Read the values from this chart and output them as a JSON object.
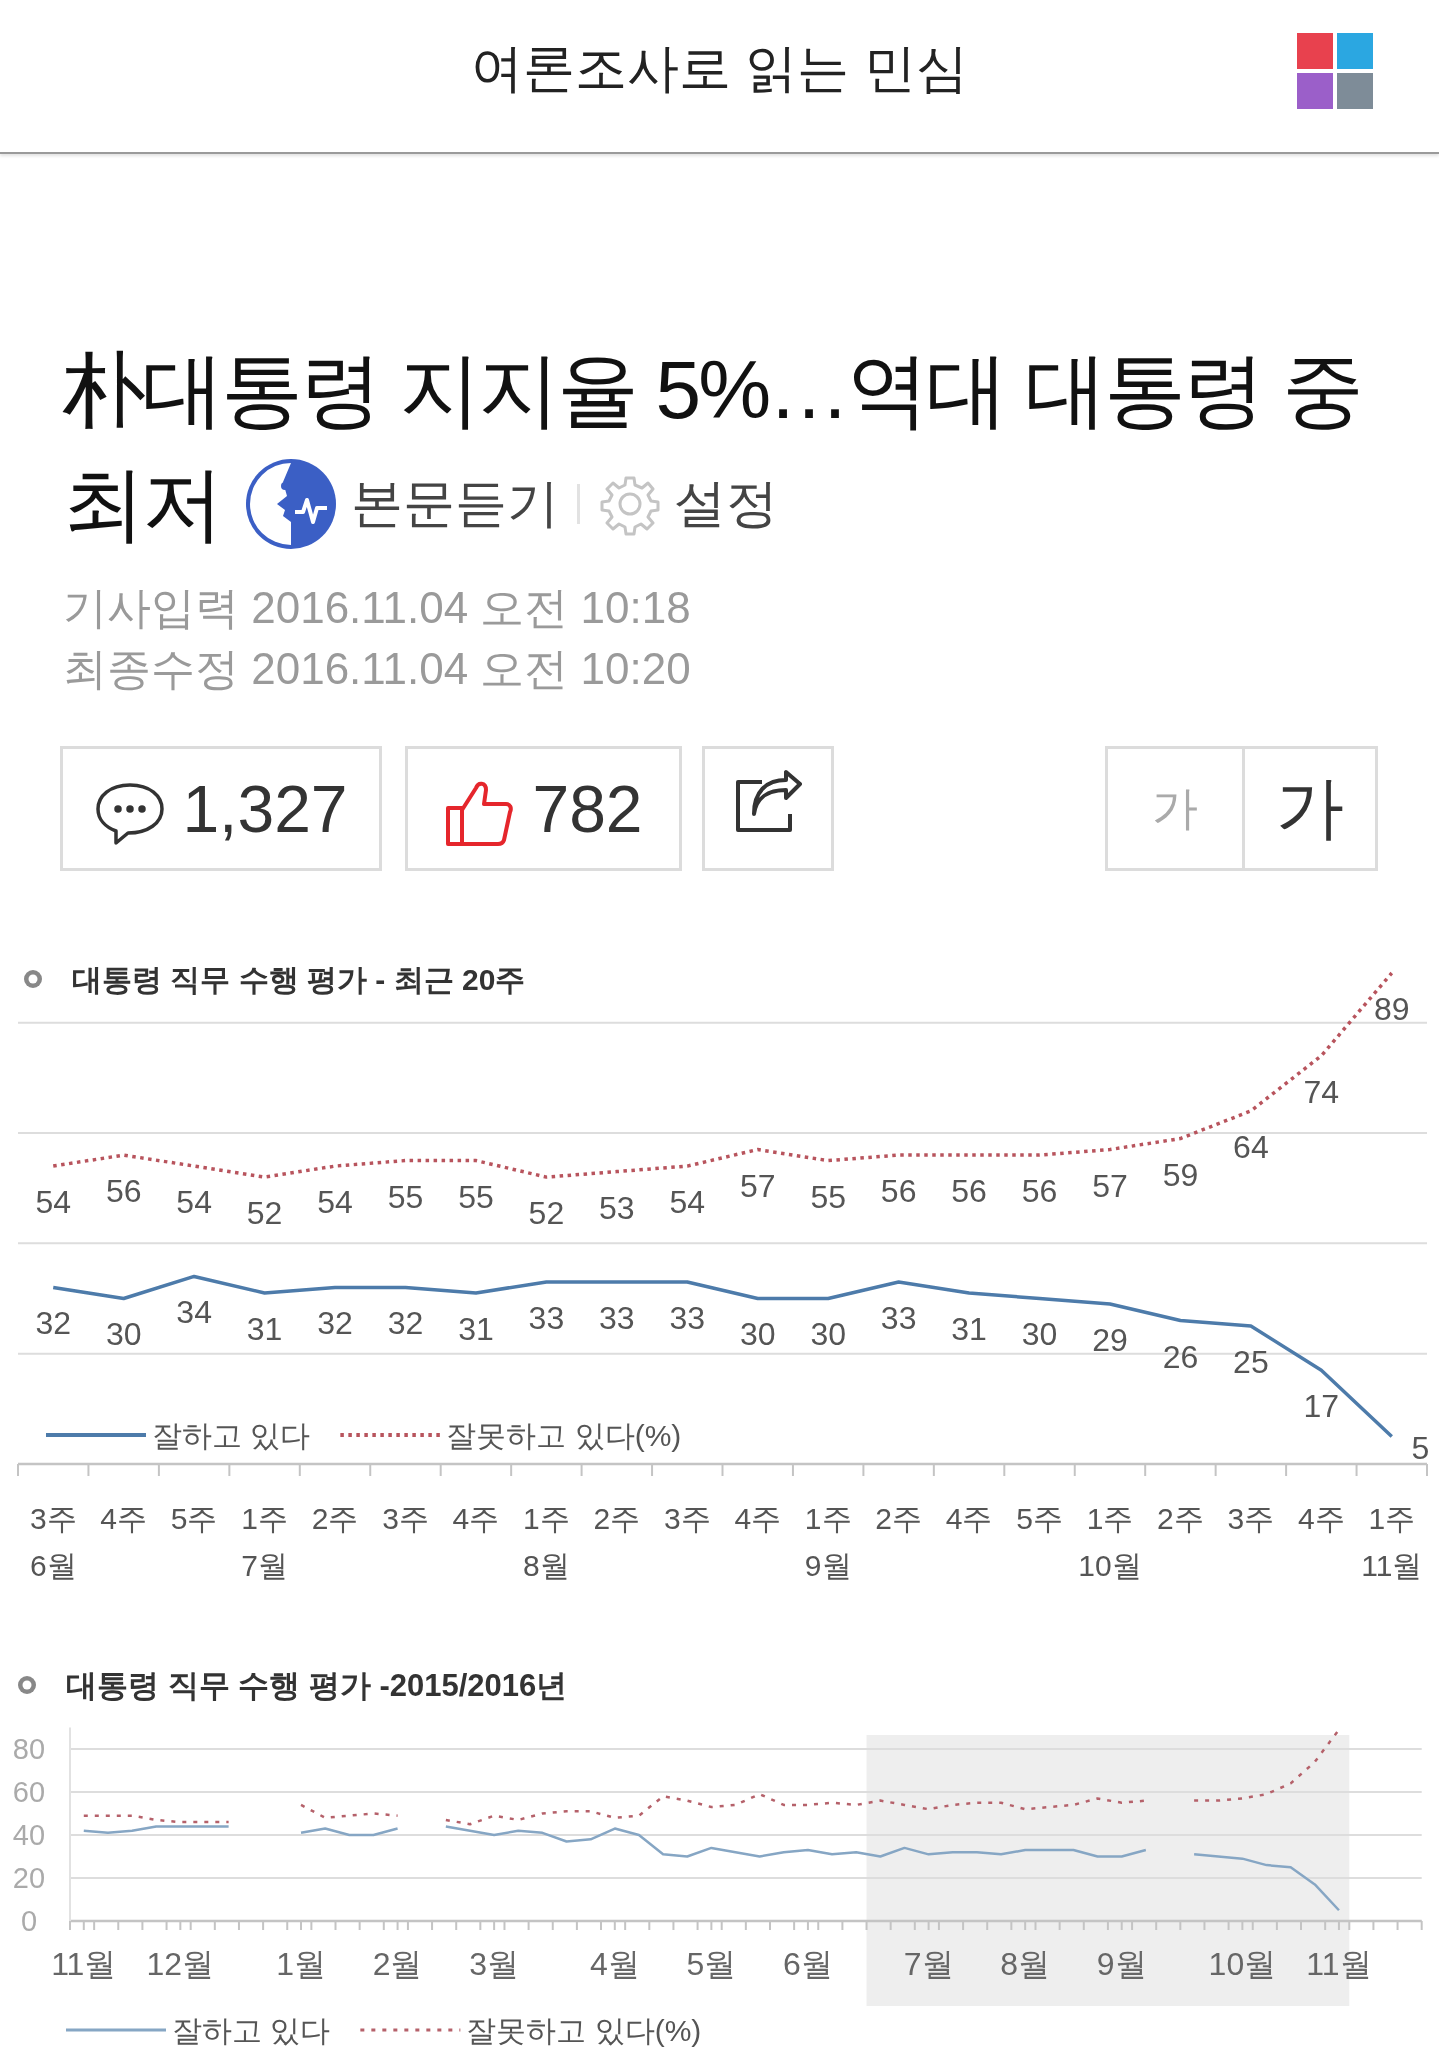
{
  "chart_data": [
    {
      "type": "other",
      "title": "여론조사로 읽는 민심",
      "annotations": [
        "朴대통령 지지율 5%…역대 대통령 중",
        "최저",
        "본문듣기",
        "설정",
        "기사입력 2016.11.04 오전 10:18",
        "최종수정 2016.11.04 오전 10:20",
        "1,327",
        "782",
        "가",
        "가"
      ]
    },
    {
      "type": "line",
      "title": "대통령 직무 수행 평가 - 최근 20주",
      "categories": [
        "3주\n6월",
        "4주",
        "5주",
        "1주\n7월",
        "2주",
        "3주",
        "4주",
        "1주\n8월",
        "2주",
        "3주",
        "4주",
        "1주\n9월",
        "2주",
        "4주",
        "5주",
        "1주\n10월",
        "2주",
        "3주",
        "4주",
        "1주\n11월"
      ],
      "series": [
        {
          "name": "잘하고 있다",
          "color": "#4d7baa",
          "line_style": "solid",
          "values": [
            32,
            30,
            34,
            31,
            32,
            32,
            31,
            33,
            33,
            33,
            30,
            30,
            33,
            31,
            30,
            29,
            26,
            25,
            17,
            5
          ]
        },
        {
          "name": "잘못하고 있다(%)",
          "color": "#b8545d",
          "line_style": "dotted",
          "values": [
            54,
            56,
            54,
            52,
            54,
            55,
            55,
            52,
            53,
            54,
            57,
            55,
            56,
            56,
            56,
            57,
            59,
            64,
            74,
            89
          ]
        }
      ],
      "data_labels": true,
      "yticks": [
        {
          "value": 0,
          "label": null
        },
        {
          "value": 20,
          "label": null
        },
        {
          "value": 40,
          "label": null
        },
        {
          "value": 60,
          "label": null
        },
        {
          "value": 80,
          "label": null
        }
      ],
      "grid": "y",
      "legend": "bottom left",
      "tick_labels": "x"
    },
    {
      "type": "line",
      "title": "대통령 직무 수행 평가 -2015/2016년",
      "x": [
        "2015-11-06",
        "2015-11-13",
        "2015-11-20",
        "2015-11-27",
        "2015-12-04",
        "2015-12-11",
        "2015-12-18",
        "2016-01-08",
        "2016-01-15",
        "2016-01-22",
        "2016-01-29",
        "2016-02-05",
        "2016-02-19",
        "2016-02-26",
        "2016-03-04",
        "2016-03-11",
        "2016-03-18",
        "2016-03-25",
        "2016-04-01",
        "2016-04-08",
        "2016-04-15",
        "2016-04-22",
        "2016-04-29",
        "2016-05-06",
        "2016-05-13",
        "2016-05-20",
        "2016-05-27",
        "2016-06-03",
        "2016-06-10",
        "2016-06-17",
        "2016-06-24",
        "2016-07-01",
        "2016-07-08",
        "2016-07-15",
        "2016-07-22",
        "2016-07-29",
        "2016-08-05",
        "2016-08-12",
        "2016-08-19",
        "2016-08-26",
        "2016-09-02",
        "2016-09-09",
        "2016-09-23",
        "2016-09-30",
        "2016-10-07",
        "2016-10-14",
        "2016-10-21",
        "2016-10-28",
        "2016-11-04"
      ],
      "xlim": [
        "2015-11-02",
        "2016-11-28"
      ],
      "xticks": [
        {
          "value": "2015-11-06",
          "label": "11월"
        },
        {
          "value": "2015-12-04",
          "label": "12월"
        },
        {
          "value": "2016-01-08",
          "label": "1월"
        },
        {
          "value": "2016-02-05",
          "label": "2월"
        },
        {
          "value": "2016-03-04",
          "label": "3월"
        },
        {
          "value": "2016-04-08",
          "label": "4월"
        },
        {
          "value": "2016-05-06",
          "label": "5월"
        },
        {
          "value": "2016-06-03",
          "label": "6월"
        },
        {
          "value": "2016-07-08",
          "label": "7월"
        },
        {
          "value": "2016-08-05",
          "label": "8월"
        },
        {
          "value": "2016-09-02",
          "label": "9월"
        },
        {
          "value": "2016-10-07",
          "label": "10월"
        },
        {
          "value": "2016-11-04",
          "label": "11월"
        },
        {
          "value": "2015-11-02",
          "label": null
        },
        {
          "value": "2015-11-09",
          "label": null
        },
        {
          "value": "2015-11-16",
          "label": null
        },
        {
          "value": "2015-11-23",
          "label": null
        },
        {
          "value": "2015-11-30",
          "label": null
        },
        {
          "value": "2015-12-07",
          "label": null
        },
        {
          "value": "2015-12-14",
          "label": null
        },
        {
          "value": "2015-12-21",
          "label": null
        },
        {
          "value": "2015-12-28",
          "label": null
        },
        {
          "value": "2016-01-04",
          "label": null
        },
        {
          "value": "2016-01-11",
          "label": null
        },
        {
          "value": "2016-01-18",
          "label": null
        },
        {
          "value": "2016-01-25",
          "label": null
        },
        {
          "value": "2016-02-01",
          "label": null
        },
        {
          "value": "2016-02-08",
          "label": null
        },
        {
          "value": "2016-02-15",
          "label": null
        },
        {
          "value": "2016-02-22",
          "label": null
        },
        {
          "value": "2016-02-29",
          "label": null
        },
        {
          "value": "2016-03-07",
          "label": null
        },
        {
          "value": "2016-03-14",
          "label": null
        },
        {
          "value": "2016-03-21",
          "label": null
        },
        {
          "value": "2016-03-28",
          "label": null
        },
        {
          "value": "2016-04-04",
          "label": null
        },
        {
          "value": "2016-04-11",
          "label": null
        },
        {
          "value": "2016-04-18",
          "label": null
        },
        {
          "value": "2016-04-25",
          "label": null
        },
        {
          "value": "2016-05-02",
          "label": null
        },
        {
          "value": "2016-05-09",
          "label": null
        },
        {
          "value": "2016-05-16",
          "label": null
        },
        {
          "value": "2016-05-23",
          "label": null
        },
        {
          "value": "2016-05-30",
          "label": null
        },
        {
          "value": "2016-06-06",
          "label": null
        },
        {
          "value": "2016-06-13",
          "label": null
        },
        {
          "value": "2016-06-20",
          "label": null
        },
        {
          "value": "2016-06-27",
          "label": null
        },
        {
          "value": "2016-07-04",
          "label": null
        },
        {
          "value": "2016-07-11",
          "label": null
        },
        {
          "value": "2016-07-18",
          "label": null
        },
        {
          "value": "2016-07-25",
          "label": null
        },
        {
          "value": "2016-08-01",
          "label": null
        },
        {
          "value": "2016-08-08",
          "label": null
        },
        {
          "value": "2016-08-15",
          "label": null
        },
        {
          "value": "2016-08-22",
          "label": null
        },
        {
          "value": "2016-08-29",
          "label": null
        },
        {
          "value": "2016-09-05",
          "label": null
        },
        {
          "value": "2016-09-12",
          "label": null
        },
        {
          "value": "2016-09-19",
          "label": null
        },
        {
          "value": "2016-09-26",
          "label": null
        },
        {
          "value": "2016-10-03",
          "label": null
        },
        {
          "value": "2016-10-10",
          "label": null
        },
        {
          "value": "2016-10-17",
          "label": null
        },
        {
          "value": "2016-10-24",
          "label": null
        },
        {
          "value": "2016-10-31",
          "label": null
        },
        {
          "value": "2016-11-07",
          "label": null
        },
        {
          "value": "2016-11-14",
          "label": null
        },
        {
          "value": "2016-11-21",
          "label": null
        },
        {
          "value": "2016-11-28",
          "label": null
        }
      ],
      "ylim": [
        0,
        90
      ],
      "yticks": [
        0,
        20,
        40,
        60,
        80
      ],
      "grid": "y",
      "legend": "bottom",
      "bands": [
        {
          "axis": "x",
          "from": "2016-06-20",
          "to": "2016-11-07",
          "color": "#eeeeee"
        }
      ],
      "series": [
        {
          "name": "잘하고 있다",
          "color": "#86a6c4",
          "line_style": "solid",
          "values": [
            42,
            41,
            42,
            44,
            44,
            44,
            44,
            41,
            43,
            40,
            40,
            43,
            44,
            42,
            40,
            42,
            41,
            37,
            38,
            43,
            40,
            31,
            30,
            34,
            32,
            30,
            32,
            33,
            31,
            32,
            30,
            34,
            31,
            32,
            32,
            31,
            33,
            33,
            33,
            30,
            30,
            33,
            31,
            30,
            29,
            26,
            25,
            17,
            5
          ]
        },
        {
          "name": "잘못하고 있다(%)",
          "color": "#b5616a",
          "line_style": "dotted",
          "values": [
            49,
            49,
            49,
            47,
            46,
            46,
            46,
            54,
            48,
            49,
            50,
            49,
            47,
            45,
            49,
            47,
            50,
            51,
            51,
            48,
            49,
            58,
            56,
            53,
            54,
            59,
            54,
            54,
            55,
            54,
            56,
            54,
            52,
            54,
            55,
            55,
            52,
            53,
            54,
            57,
            55,
            56,
            56,
            56,
            57,
            59,
            64,
            74,
            89
          ]
        }
      ]
    }
  ]
}
